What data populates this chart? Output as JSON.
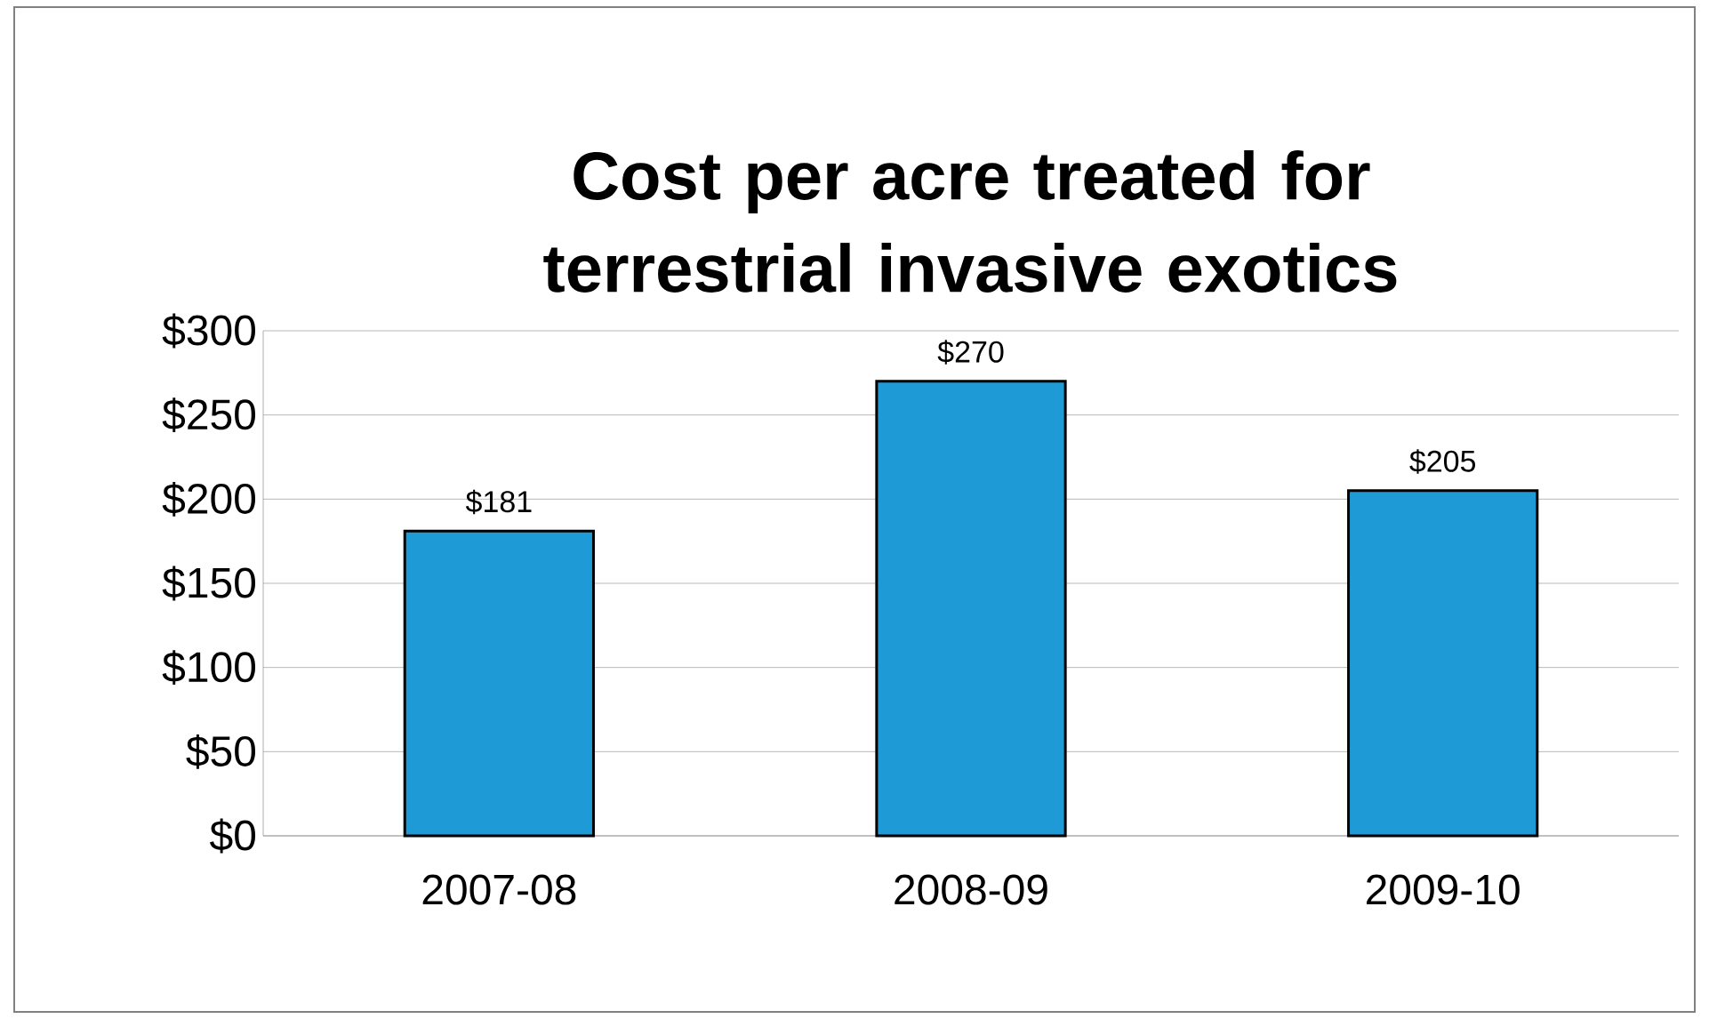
{
  "chart_data": {
    "type": "bar",
    "title": "Cost per acre treated for terrestrial invasive exotics",
    "categories": [
      "2007-08",
      "2008-09",
      "2009-10"
    ],
    "values": [
      181,
      270,
      205
    ],
    "value_labels": [
      "$181",
      "$270",
      "$205"
    ],
    "color": "#1e9ad6",
    "ylim": [
      0,
      300
    ],
    "yticks": [
      {
        "value": 0,
        "label": "$0"
      },
      {
        "value": 50,
        "label": "$50"
      },
      {
        "value": 100,
        "label": "$100"
      },
      {
        "value": 150,
        "label": "$150"
      },
      {
        "value": 200,
        "label": "$200"
      },
      {
        "value": 250,
        "label": "$250"
      },
      {
        "value": 300,
        "label": "$300"
      }
    ],
    "grid": true
  }
}
